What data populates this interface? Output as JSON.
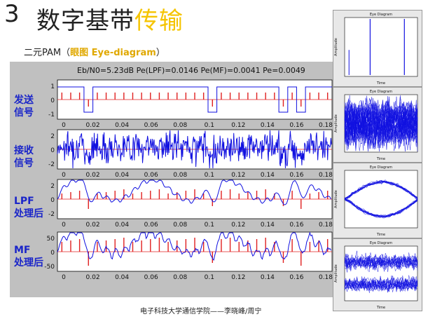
{
  "slide": {
    "number": "3",
    "title_plain": "数字基带",
    "title_accent": "传输",
    "subtitle_prefix": "二元PAM（",
    "subtitle_accent": "眼图 Eye-diagram",
    "subtitle_suffix": "）",
    "footer": "电子科技大学通信学院——李晓峰/周宁",
    "accent_color": "#f5c400",
    "label_color": "#1a25c9"
  },
  "panel": {
    "header": "Eb/N0=5.23dB     Pe(LPF)=0.0146  Pe(MF)=0.0041     Pe=0.0049",
    "xticks": [
      "0",
      "0.02",
      "0.04",
      "0.06",
      "0.08",
      "0.1",
      "0.12",
      "0.14",
      "0.16",
      "0.18"
    ],
    "rows": [
      {
        "label1": "发送",
        "label2": "信号",
        "yticks": [
          "1",
          "0",
          "-1"
        ]
      },
      {
        "label1": "接收",
        "label2": "信号",
        "yticks": [
          "2",
          "0",
          "-2"
        ]
      },
      {
        "label1": "LPF",
        "label2": "处理后",
        "yticks": [
          "2",
          "0",
          "-2"
        ]
      },
      {
        "label1": "MF",
        "label2": "处理后",
        "yticks": [
          "50",
          "0",
          "-50"
        ]
      }
    ]
  },
  "eyes": [
    {
      "title": "Eye Diagram",
      "xlabel": "Time",
      "ylabel": "Amplitude"
    },
    {
      "title": "Eye Diagram",
      "xlabel": "Time",
      "ylabel": "Amplitude"
    },
    {
      "title": "Eye Diagram",
      "xlabel": "Time",
      "ylabel": "Amplitude"
    },
    {
      "title": "Eye Diagram",
      "xlabel": "Time",
      "ylabel": "Amplitude"
    }
  ],
  "chart_data": {
    "type": "line",
    "bits": [
      1,
      1,
      1,
      -1,
      1,
      1,
      1,
      1,
      1,
      1,
      1,
      1,
      1,
      1,
      1,
      1,
      1,
      -1,
      1,
      1,
      1,
      1,
      1,
      1,
      1,
      -1,
      1,
      -1,
      1,
      1,
      1
    ]
  }
}
